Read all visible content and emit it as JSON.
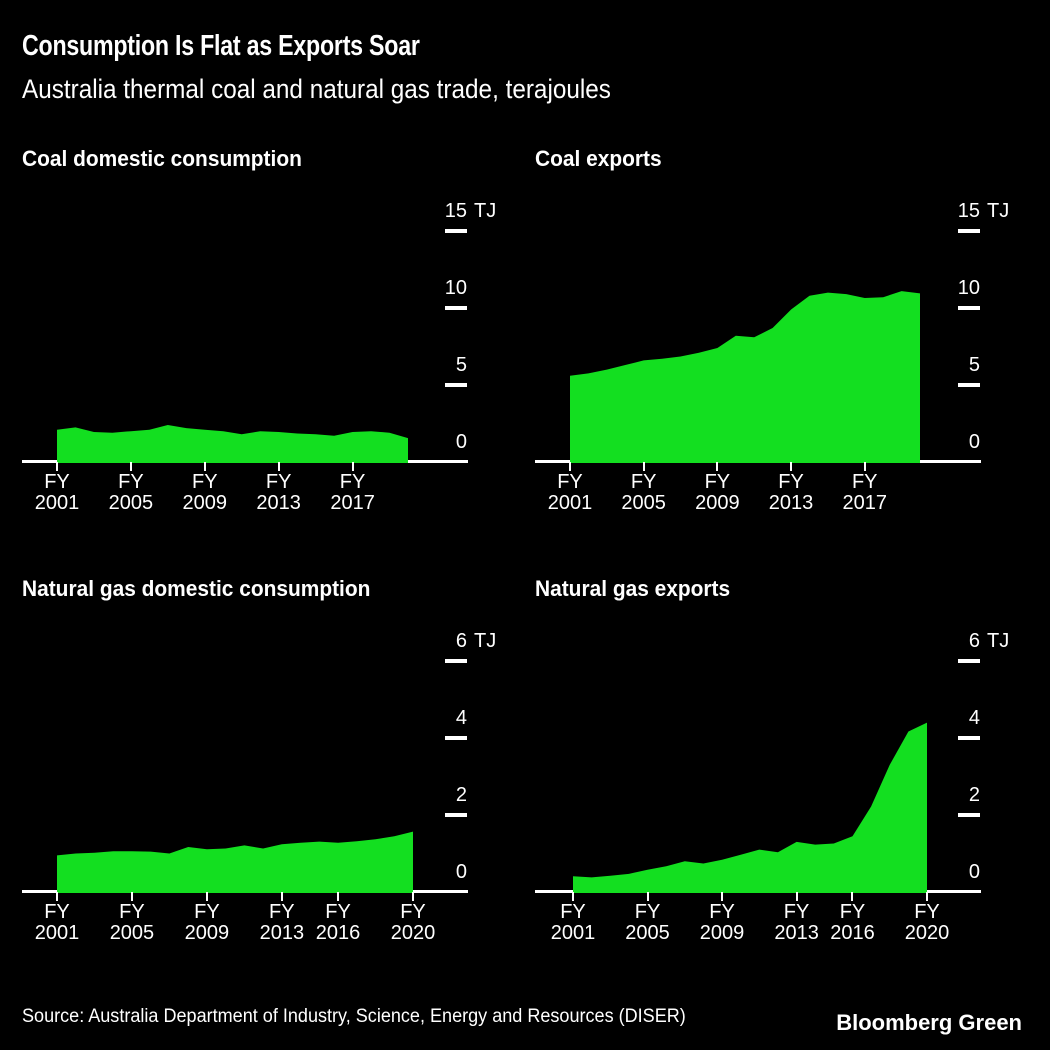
{
  "header": {
    "title": "Consumption Is Flat as Exports Soar",
    "subtitle": "Australia thermal coal and natural gas trade, terajoules"
  },
  "colors": {
    "background": "#000000",
    "area_green": "#13DF20",
    "axis_white": "#FFFFFF",
    "text": "#FFFFFF"
  },
  "chart_data": [
    {
      "type": "area",
      "title": "Coal domestic consumption",
      "unit": "TJ",
      "x_tick_prefix": "FY",
      "x_tick_years": [
        2001,
        2005,
        2009,
        2013,
        2017
      ],
      "y_ticks": [
        0,
        5,
        10,
        15
      ],
      "ylim": [
        0,
        15.6
      ],
      "years": [
        2001,
        2002,
        2003,
        2004,
        2005,
        2006,
        2007,
        2008,
        2009,
        2010,
        2011,
        2012,
        2013,
        2014,
        2015,
        2016,
        2017,
        2018,
        2019,
        2020
      ],
      "values": [
        2.1,
        2.25,
        1.95,
        1.9,
        2.0,
        2.1,
        2.4,
        2.2,
        2.1,
        2.0,
        1.8,
        2.0,
        1.95,
        1.85,
        1.8,
        1.7,
        1.95,
        2.0,
        1.9,
        1.55
      ]
    },
    {
      "type": "area",
      "title": "Coal exports",
      "unit": "TJ",
      "x_tick_prefix": "FY",
      "x_tick_years": [
        2001,
        2005,
        2009,
        2013,
        2017
      ],
      "y_ticks": [
        0,
        5,
        10,
        15
      ],
      "ylim": [
        0,
        15.6
      ],
      "years": [
        2001,
        2002,
        2003,
        2004,
        2005,
        2006,
        2007,
        2008,
        2009,
        2010,
        2011,
        2012,
        2013,
        2014,
        2015,
        2016,
        2017,
        2018,
        2019,
        2020
      ],
      "values": [
        5.6,
        5.75,
        6.0,
        6.3,
        6.6,
        6.7,
        6.85,
        7.1,
        7.4,
        8.2,
        8.1,
        8.7,
        9.9,
        10.8,
        11.0,
        10.9,
        10.65,
        10.7,
        11.1,
        10.95
      ]
    },
    {
      "type": "area",
      "title": "Natural gas domestic consumption",
      "unit": "TJ",
      "x_tick_prefix": "FY",
      "x_tick_years": [
        2001,
        2005,
        2009,
        2013,
        2016,
        2020
      ],
      "y_ticks": [
        0,
        2,
        4,
        6
      ],
      "ylim": [
        0,
        6.2
      ],
      "years": [
        2001,
        2002,
        2003,
        2004,
        2005,
        2006,
        2007,
        2008,
        2009,
        2010,
        2011,
        2012,
        2013,
        2014,
        2015,
        2016,
        2017,
        2018,
        2019,
        2020
      ],
      "values": [
        0.95,
        1.0,
        1.02,
        1.06,
        1.06,
        1.05,
        1.0,
        1.17,
        1.11,
        1.13,
        1.21,
        1.13,
        1.24,
        1.28,
        1.31,
        1.28,
        1.32,
        1.37,
        1.45,
        1.57
      ]
    },
    {
      "type": "area",
      "title": "Natural gas exports",
      "unit": "TJ",
      "x_tick_prefix": "FY",
      "x_tick_years": [
        2001,
        2005,
        2009,
        2013,
        2016,
        2020
      ],
      "y_ticks": [
        0,
        2,
        4,
        6
      ],
      "ylim": [
        0,
        6.2
      ],
      "years": [
        2001,
        2002,
        2003,
        2004,
        2005,
        2006,
        2007,
        2008,
        2009,
        2010,
        2011,
        2012,
        2013,
        2014,
        2015,
        2016,
        2017,
        2018,
        2019,
        2020
      ],
      "values": [
        0.41,
        0.38,
        0.42,
        0.47,
        0.58,
        0.67,
        0.8,
        0.74,
        0.84,
        0.97,
        1.1,
        1.03,
        1.3,
        1.23,
        1.26,
        1.45,
        2.22,
        3.3,
        4.17,
        4.4
      ]
    }
  ],
  "footer": {
    "source": "Source: Australia Department of Industry, Science, Energy and Resources (DISER)",
    "brand": "Bloomberg Green"
  }
}
